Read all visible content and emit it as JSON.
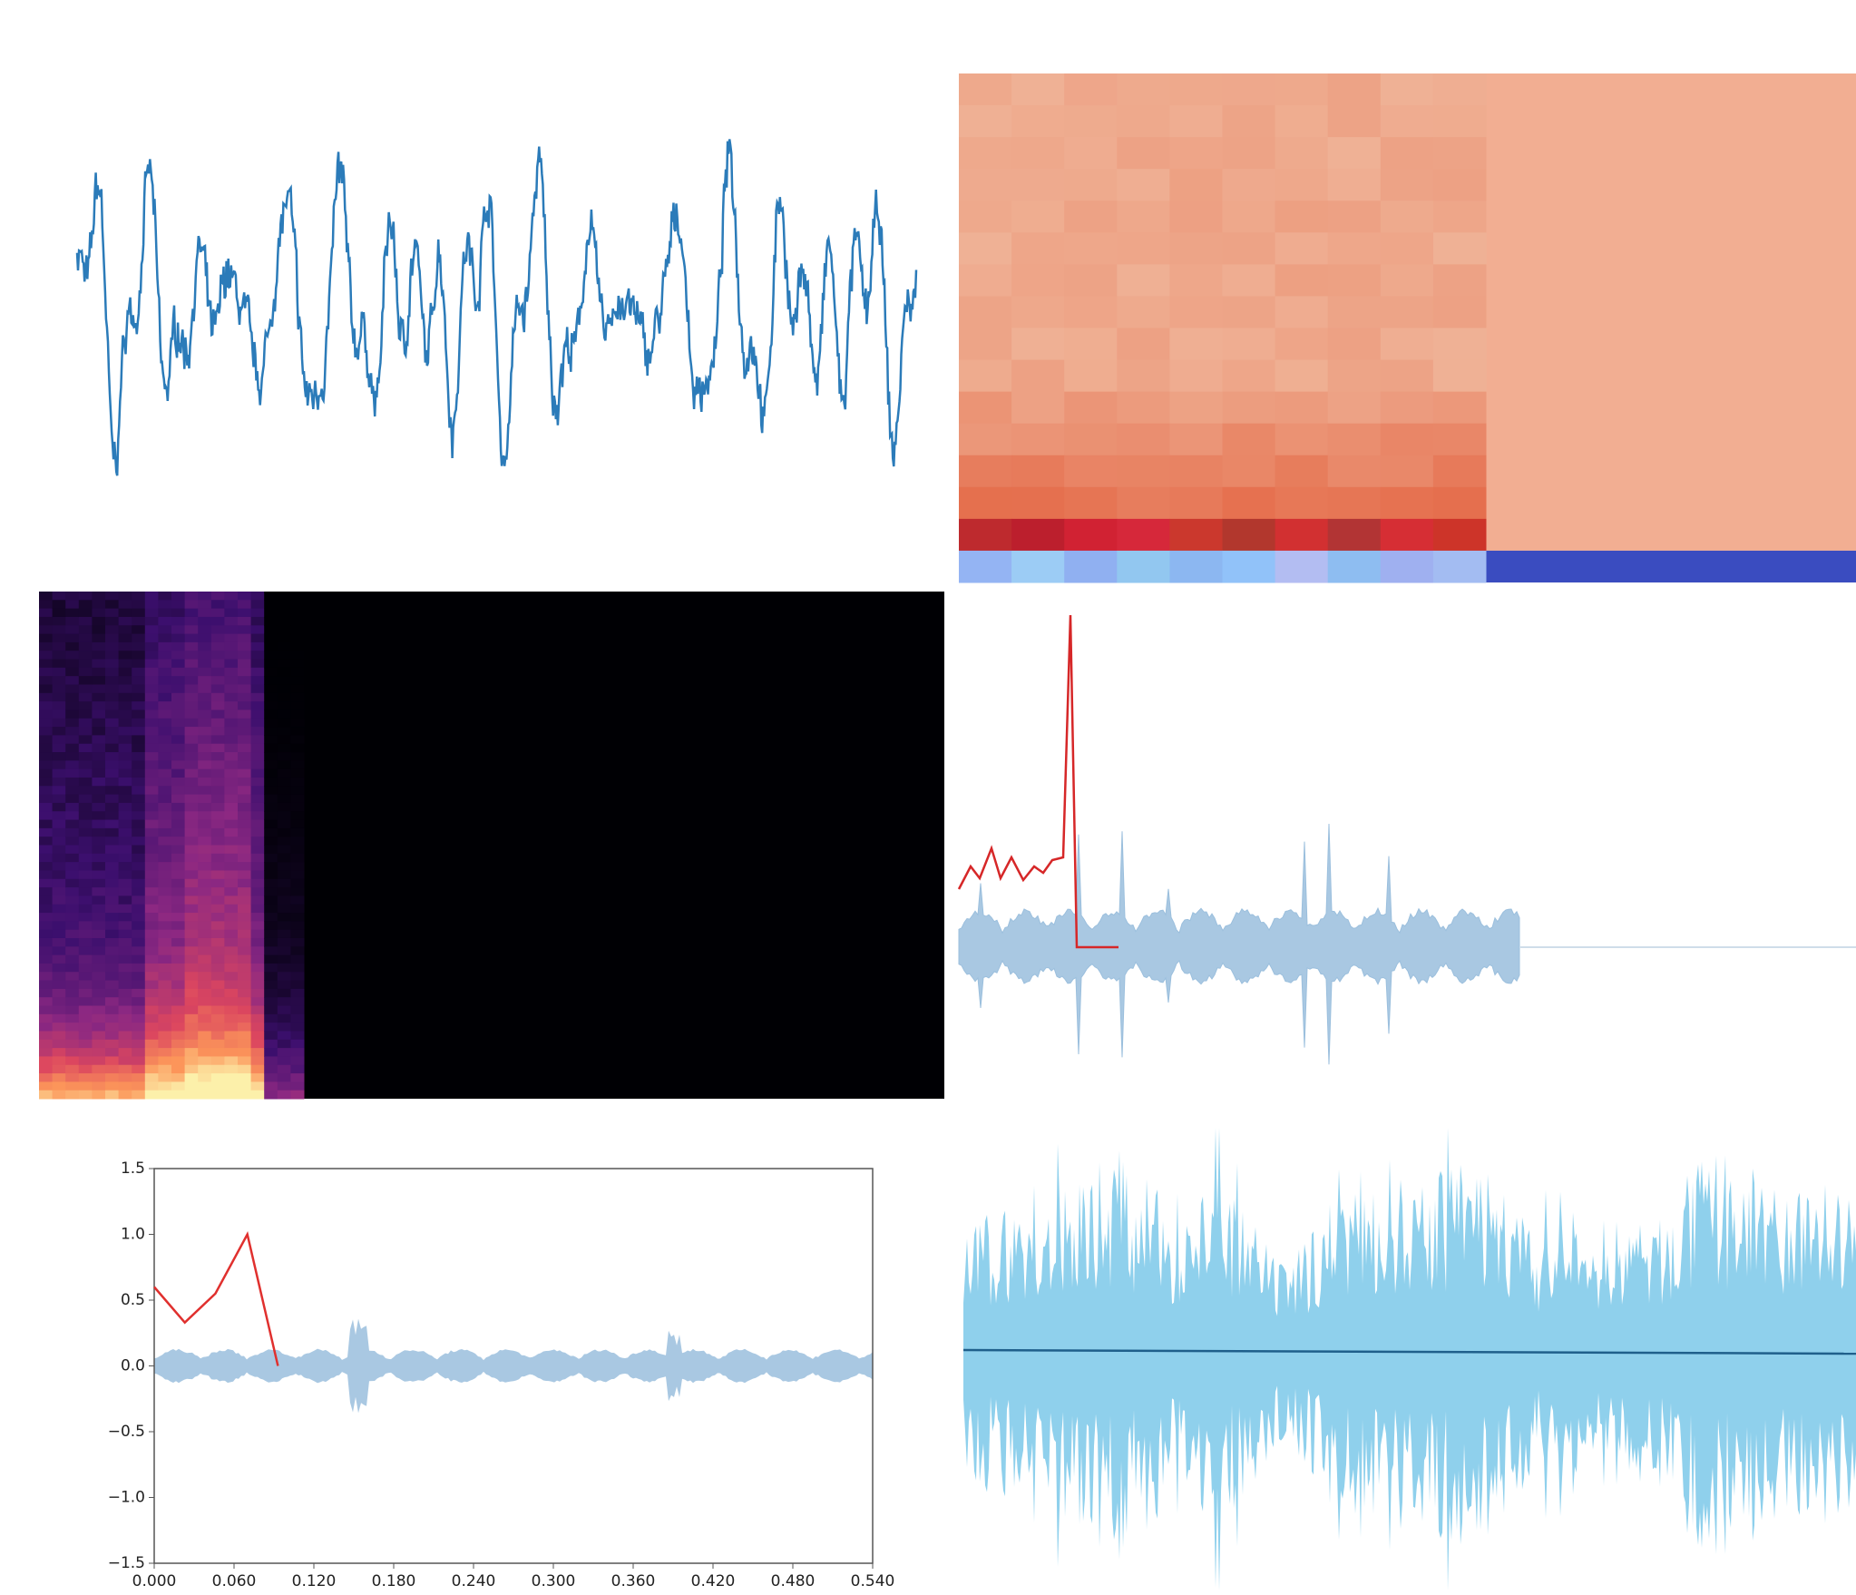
{
  "chart_data": {
    "type": "line",
    "x": [
      0,
      0.023,
      0.046,
      0.07,
      0.093
    ],
    "series": [
      {
        "color": "#e0302e",
        "values": [
          0.6,
          0.33,
          0.55,
          1.0,
          0.0
        ]
      }
    ],
    "xlim": [
      0,
      0.54
    ],
    "ylim": [
      -1.5,
      1.5
    ],
    "xticks": [
      {
        "value": 0,
        "label": "0.000"
      },
      {
        "value": 0.06,
        "label": "0.060"
      },
      {
        "value": 0.12,
        "label": "0.120"
      },
      {
        "value": 0.18,
        "label": "0.180"
      },
      {
        "value": 0.24,
        "label": "0.240"
      },
      {
        "value": 0.3,
        "label": "0.300"
      },
      {
        "value": 0.36,
        "label": "0.360"
      },
      {
        "value": 0.42,
        "label": "0.420"
      },
      {
        "value": 0.48,
        "label": "0.480"
      },
      {
        "value": 0.54,
        "label": "0.540"
      }
    ],
    "yticks": [
      1.5,
      {
        "value": 1,
        "label": "1.0"
      },
      0.5,
      {
        "value": 0,
        "label": "0.0"
      },
      {
        "value": -0.5,
        "label": "−0.5"
      },
      {
        "value": -1,
        "label": "−1.0"
      },
      {
        "value": -1.5,
        "label": "−1.5"
      }
    ]
  }
}
